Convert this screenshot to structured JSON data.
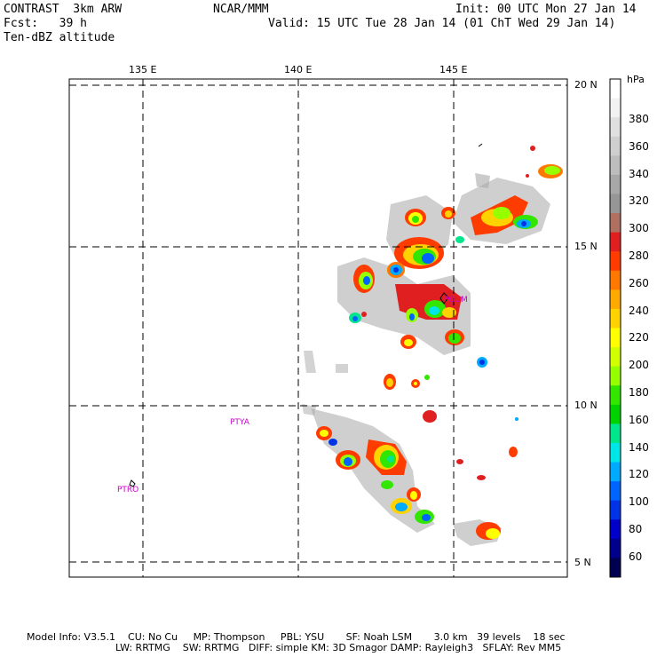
{
  "header": {
    "model": "CONTRAST  3km ARW",
    "center": "NCAR/MMM",
    "init": "Init: 00 UTC Mon 27 Jan 14",
    "fcst": "Fcst:   39 h",
    "valid": "Valid: 15 UTC Tue 28 Jan 14 (01 ChT Wed 29 Jan 14)",
    "field": "Ten-dBZ altitude"
  },
  "lon_labels": [
    "135 E",
    "140 E",
    "145 E"
  ],
  "lat_labels": [
    "20 N",
    "15 N",
    "10 N",
    "5 N"
  ],
  "stations": [
    {
      "name": "PTYA"
    },
    {
      "name": "PTRO"
    },
    {
      "name": "PGUM"
    }
  ],
  "colorbar": {
    "unit": "hPa",
    "labels": [
      "380",
      "360",
      "340",
      "320",
      "300",
      "280",
      "260",
      "240",
      "220",
      "200",
      "180",
      "160",
      "140",
      "120",
      "100",
      "80",
      "60"
    ],
    "colors": [
      "#ffffff",
      "#f2f2f2",
      "#e0e0e0",
      "#cfcfcf",
      "#bdbdbd",
      "#a8a8a8",
      "#969696",
      "#b07060",
      "#e02020",
      "#ff3c00",
      "#ff7800",
      "#ffaa00",
      "#ffd200",
      "#ffff00",
      "#d2ff00",
      "#96ff00",
      "#32e600",
      "#00d200",
      "#00e68c",
      "#00e6e6",
      "#00aaff",
      "#0064ff",
      "#0032e6",
      "#0000c8",
      "#00008c",
      "#000050"
    ]
  },
  "footer": {
    "line1": "Model Info: V3.5.1    CU: No Cu     MP: Thompson     PBL: YSU       SF: Noah LSM       3.0 km   39 levels    18 sec",
    "line2": "LW: RRTMG    SW: RRTMG   DIFF: simple KM: 3D Smagor DAMP: Rayleigh3   SFLAY: Rev MM5"
  }
}
